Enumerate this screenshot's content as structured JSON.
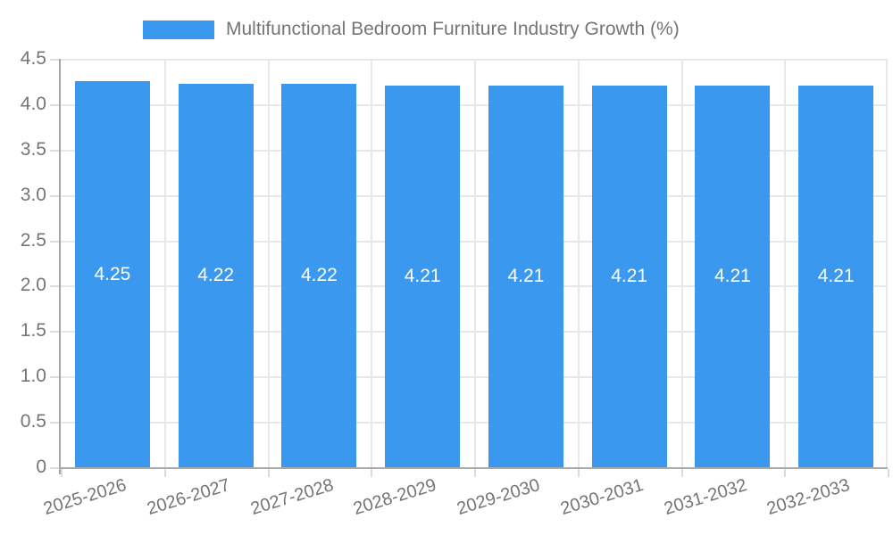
{
  "legend": {
    "label": "Multifunctional Bedroom Furniture Industry Growth (%)"
  },
  "chart_data": {
    "type": "bar",
    "title": "Multifunctional Bedroom Furniture Industry Growth (%)",
    "categories": [
      "2025-2026",
      "2026-2027",
      "2027-2028",
      "2028-2029",
      "2029-2030",
      "2030-2031",
      "2031-2032",
      "2032-2033"
    ],
    "series": [
      {
        "name": "Multifunctional Bedroom Furniture Industry Growth (%)",
        "values": [
          4.25,
          4.22,
          4.22,
          4.21,
          4.21,
          4.21,
          4.21,
          4.21
        ]
      }
    ],
    "bar_labels": [
      "4.25",
      "4.22",
      "4.22",
      "4.21",
      "4.21",
      "4.21",
      "4.21",
      "4.21"
    ],
    "xlabel": "",
    "ylabel": "",
    "ylim": [
      0,
      4.5
    ],
    "ytick_step": 0.5,
    "ytick_labels": [
      "4.5",
      "4.0",
      "3.5",
      "3.0",
      "2.5",
      "2.0",
      "1.5",
      "1.0",
      "0.5",
      "0"
    ],
    "grid": true,
    "legend_position": "top-center",
    "colors": {
      "bar": "#3a99ee",
      "grid": "#e8e8e8",
      "axis_y": "#a6a6a6",
      "axis_x": "#ababab",
      "tick": "#dcdcdc",
      "text": "#757575",
      "bar_label": "#ffffff",
      "background": "#ffffff"
    }
  }
}
